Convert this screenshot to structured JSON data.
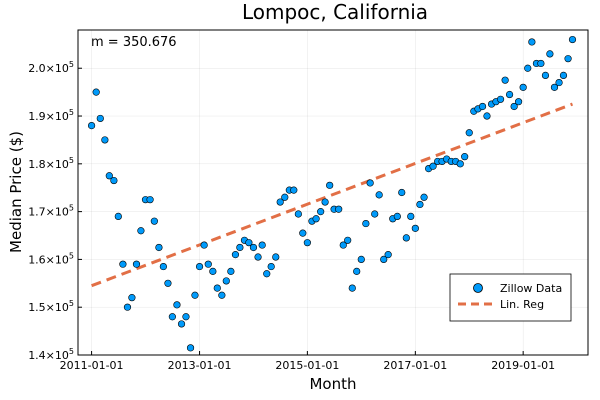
{
  "chart_data": {
    "type": "scatter",
    "title": "Lompoc, California",
    "xlabel": "Month",
    "ylabel": "Median Price ($)",
    "annotation": "m = 350.676",
    "x_ticks": [
      "2011-01-01",
      "2013-01-01",
      "2015-01-01",
      "2017-01-01",
      "2019-01-01"
    ],
    "y_ticks": [
      {
        "value": 140000,
        "mantissa": "1.4×10",
        "exp": "5"
      },
      {
        "value": 150000,
        "mantissa": "1.5×10",
        "exp": "5"
      },
      {
        "value": 160000,
        "mantissa": "1.6×10",
        "exp": "5"
      },
      {
        "value": 170000,
        "mantissa": "1.7×10",
        "exp": "5"
      },
      {
        "value": 180000,
        "mantissa": "1.8×10",
        "exp": "5"
      },
      {
        "value": 190000,
        "mantissa": "1.9×10",
        "exp": "5"
      },
      {
        "value": 200000,
        "mantissa": "2.0×10",
        "exp": "5"
      }
    ],
    "xlim": [
      "2010-10-01",
      "2020-03-15"
    ],
    "ylim": [
      140000,
      208000
    ],
    "grid": true,
    "legend_position": "bottom-right",
    "colors": {
      "scatter": "#009AFA",
      "regression": "#E26F46"
    },
    "series": [
      {
        "name": "Zillow Data",
        "type": "scatter",
        "points": [
          [
            "2011-01-01",
            188000
          ],
          [
            "2011-02-01",
            195000
          ],
          [
            "2011-03-01",
            189500
          ],
          [
            "2011-04-01",
            185000
          ],
          [
            "2011-05-01",
            177500
          ],
          [
            "2011-06-01",
            176500
          ],
          [
            "2011-07-01",
            169000
          ],
          [
            "2011-08-01",
            159000
          ],
          [
            "2011-09-01",
            150000
          ],
          [
            "2011-10-01",
            152000
          ],
          [
            "2011-11-01",
            159000
          ],
          [
            "2011-12-01",
            166000
          ],
          [
            "2012-01-01",
            172500
          ],
          [
            "2012-02-01",
            172500
          ],
          [
            "2012-03-01",
            168000
          ],
          [
            "2012-04-01",
            162500
          ],
          [
            "2012-05-01",
            158500
          ],
          [
            "2012-06-01",
            155000
          ],
          [
            "2012-07-01",
            148000
          ],
          [
            "2012-08-01",
            150500
          ],
          [
            "2012-09-01",
            146500
          ],
          [
            "2012-10-01",
            148000
          ],
          [
            "2012-11-01",
            141500
          ],
          [
            "2012-12-01",
            152500
          ],
          [
            "2013-01-01",
            158500
          ],
          [
            "2013-02-01",
            163000
          ],
          [
            "2013-03-01",
            159000
          ],
          [
            "2013-04-01",
            157500
          ],
          [
            "2013-05-01",
            154000
          ],
          [
            "2013-06-01",
            152500
          ],
          [
            "2013-07-01",
            155500
          ],
          [
            "2013-08-01",
            157500
          ],
          [
            "2013-09-01",
            161000
          ],
          [
            "2013-10-01",
            162500
          ],
          [
            "2013-11-01",
            164000
          ],
          [
            "2013-12-01",
            163500
          ],
          [
            "2014-01-01",
            162500
          ],
          [
            "2014-02-01",
            160500
          ],
          [
            "2014-03-01",
            163000
          ],
          [
            "2014-04-01",
            157000
          ],
          [
            "2014-05-01",
            158500
          ],
          [
            "2014-06-01",
            160500
          ],
          [
            "2014-07-01",
            172000
          ],
          [
            "2014-08-01",
            173000
          ],
          [
            "2014-09-01",
            174500
          ],
          [
            "2014-10-01",
            174500
          ],
          [
            "2014-11-01",
            169500
          ],
          [
            "2014-12-01",
            165500
          ],
          [
            "2015-01-01",
            163500
          ],
          [
            "2015-02-01",
            168000
          ],
          [
            "2015-03-01",
            168500
          ],
          [
            "2015-04-01",
            170000
          ],
          [
            "2015-05-01",
            172000
          ],
          [
            "2015-06-01",
            175500
          ],
          [
            "2015-07-01",
            170500
          ],
          [
            "2015-08-01",
            170500
          ],
          [
            "2015-09-01",
            163000
          ],
          [
            "2015-10-01",
            164000
          ],
          [
            "2015-11-01",
            154000
          ],
          [
            "2015-12-01",
            157500
          ],
          [
            "2016-01-01",
            160000
          ],
          [
            "2016-02-01",
            167500
          ],
          [
            "2016-03-01",
            176000
          ],
          [
            "2016-04-01",
            169500
          ],
          [
            "2016-05-01",
            173500
          ],
          [
            "2016-06-01",
            160000
          ],
          [
            "2016-07-01",
            161000
          ],
          [
            "2016-08-01",
            168500
          ],
          [
            "2016-09-01",
            169000
          ],
          [
            "2016-10-01",
            174000
          ],
          [
            "2016-11-01",
            164500
          ],
          [
            "2016-12-01",
            169000
          ],
          [
            "2017-01-01",
            166500
          ],
          [
            "2017-02-01",
            171500
          ],
          [
            "2017-03-01",
            173000
          ],
          [
            "2017-04-01",
            179000
          ],
          [
            "2017-05-01",
            179500
          ],
          [
            "2017-06-01",
            180500
          ],
          [
            "2017-07-01",
            180500
          ],
          [
            "2017-08-01",
            181000
          ],
          [
            "2017-09-01",
            180500
          ],
          [
            "2017-10-01",
            180500
          ],
          [
            "2017-11-01",
            180000
          ],
          [
            "2017-12-01",
            181500
          ],
          [
            "2018-01-01",
            186500
          ],
          [
            "2018-02-01",
            191000
          ],
          [
            "2018-03-01",
            191500
          ],
          [
            "2018-04-01",
            192000
          ],
          [
            "2018-05-01",
            190000
          ],
          [
            "2018-06-01",
            192500
          ],
          [
            "2018-07-01",
            193000
          ],
          [
            "2018-08-01",
            193500
          ],
          [
            "2018-09-01",
            197500
          ],
          [
            "2018-10-01",
            194500
          ],
          [
            "2018-11-01",
            192000
          ],
          [
            "2018-12-01",
            193000
          ],
          [
            "2019-01-01",
            196000
          ],
          [
            "2019-02-01",
            200000
          ],
          [
            "2019-03-01",
            205500
          ],
          [
            "2019-04-01",
            201000
          ],
          [
            "2019-05-01",
            201000
          ],
          [
            "2019-06-01",
            198500
          ],
          [
            "2019-07-01",
            203000
          ],
          [
            "2019-08-01",
            196000
          ],
          [
            "2019-09-01",
            197000
          ],
          [
            "2019-10-01",
            198500
          ],
          [
            "2019-11-01",
            202000
          ],
          [
            "2019-12-01",
            206000
          ]
        ]
      },
      {
        "name": "Lin. Reg",
        "type": "line",
        "style": "dashed",
        "points": [
          [
            "2011-01-01",
            154500
          ],
          [
            "2019-12-01",
            192500
          ]
        ]
      }
    ]
  }
}
